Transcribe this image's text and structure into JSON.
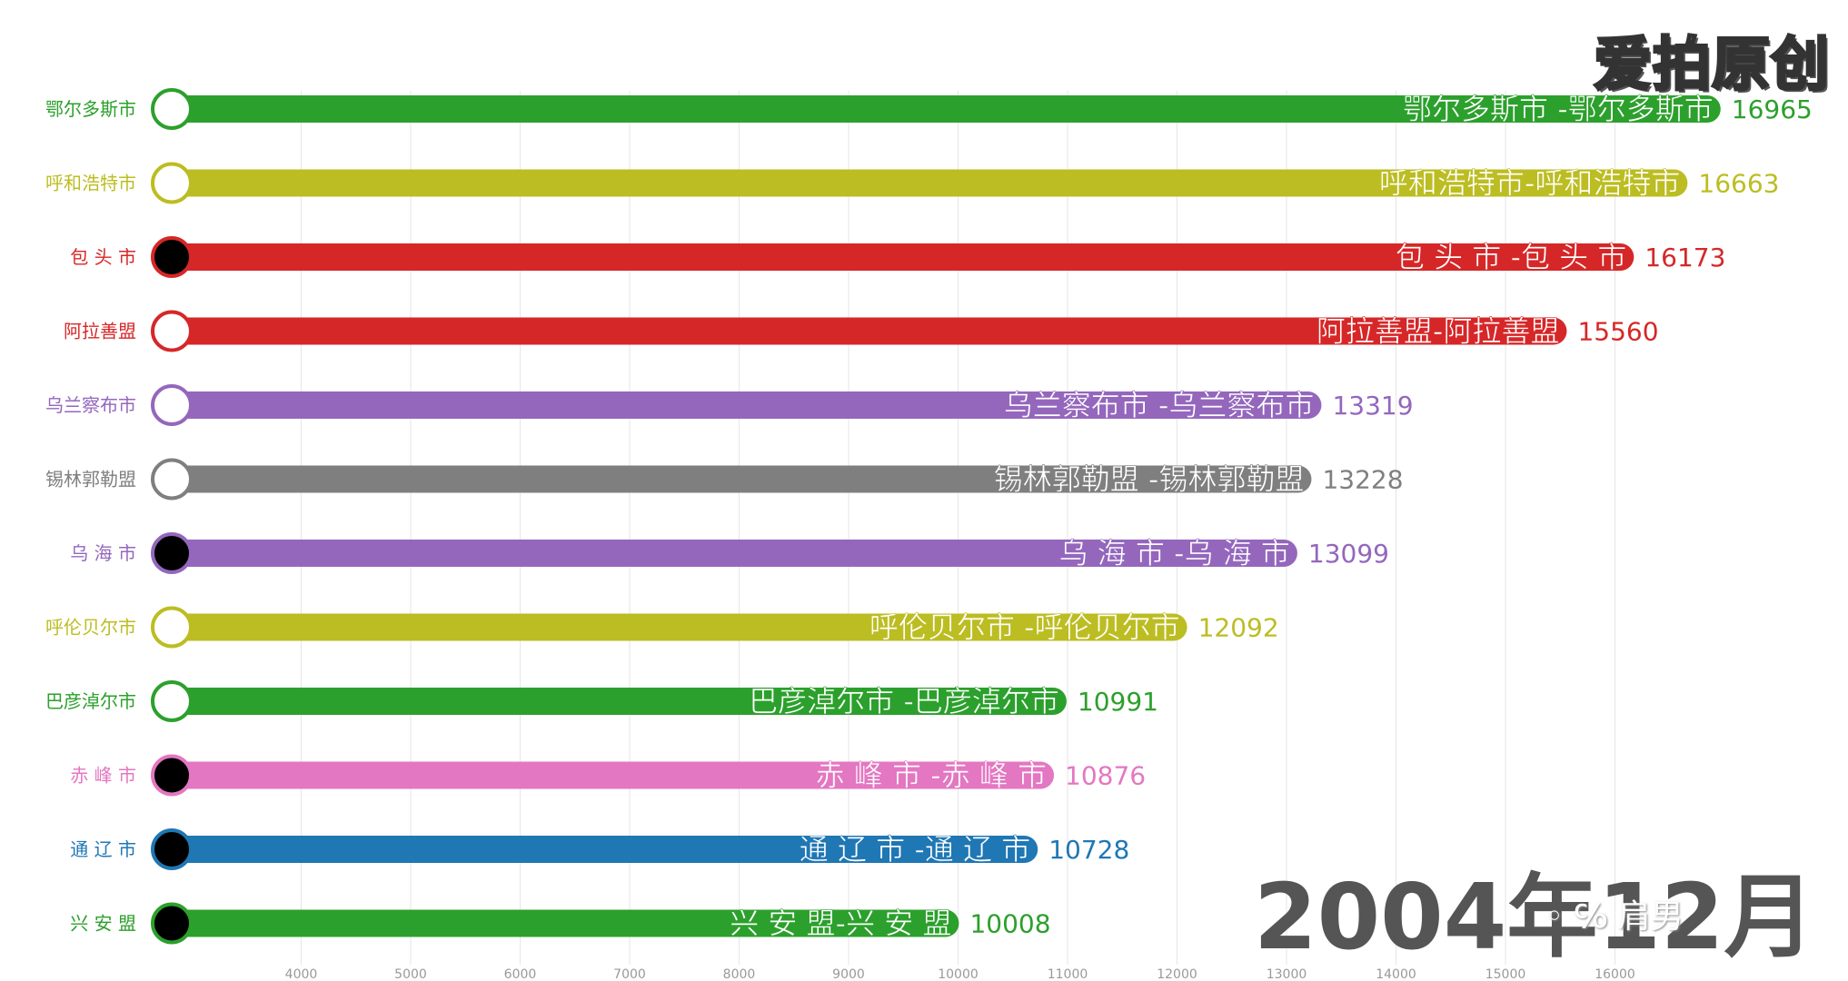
{
  "watermark": "爱拍原创",
  "date_text": "2004年12月",
  "date_overlay": "◦ ℅ 肩男",
  "chart_data": {
    "type": "bar",
    "orientation": "horizontal",
    "title": "",
    "xlabel": "",
    "ylabel": "",
    "xlim": [
      3000,
      17000
    ],
    "xticks": [
      4000,
      5000,
      6000,
      7000,
      8000,
      9000,
      10000,
      11000,
      12000,
      13000,
      14000,
      15000,
      16000
    ],
    "grid": true,
    "categories": [
      "鄂尔多斯市",
      "呼和浩特市",
      "包头市",
      "阿拉善盟",
      "乌兰察布市",
      "锡林郭勒盟",
      "乌海市",
      "呼伦贝尔市",
      "巴彦淖尔市",
      "赤峰市",
      "通辽市",
      "兴安盟"
    ],
    "category_display": [
      "鄂尔多斯市",
      "呼和浩特市",
      "包 头 市",
      "阿拉善盟",
      "乌兰察布市",
      "锡林郭勒盟",
      "乌 海 市",
      "呼伦贝尔市",
      "巴彦淖尔市",
      "赤 峰 市",
      "通 辽 市",
      "兴 安 盟"
    ],
    "bar_labels": [
      "鄂尔多斯市 -鄂尔多斯市",
      "呼和浩特市-呼和浩特市",
      "包 头 市 -包 头 市",
      "阿拉善盟-阿拉善盟",
      "乌兰察布市 -乌兰察布市",
      "锡林郭勒盟 -锡林郭勒盟",
      "乌 海 市 -乌 海 市",
      "呼伦贝尔市 -呼伦贝尔市",
      "巴彦淖尔市 -巴彦淖尔市",
      "赤 峰 市 -赤 峰 市",
      "通 辽 市 -通 辽 市",
      "兴 安 盟-兴 安 盟"
    ],
    "values": [
      16965,
      16663,
      16173,
      15560,
      13319,
      13228,
      13099,
      12092,
      10991,
      10876,
      10728,
      10008
    ],
    "colors": [
      "#2ca02c",
      "#bcbd22",
      "#d62728",
      "#d62728",
      "#9467bd",
      "#7f7f7f",
      "#9467bd",
      "#bcbd22",
      "#2ca02c",
      "#e377c2",
      "#1f77b4",
      "#2ca02c"
    ],
    "markers_filled": [
      false,
      false,
      true,
      false,
      false,
      false,
      true,
      false,
      false,
      true,
      true,
      true
    ]
  }
}
